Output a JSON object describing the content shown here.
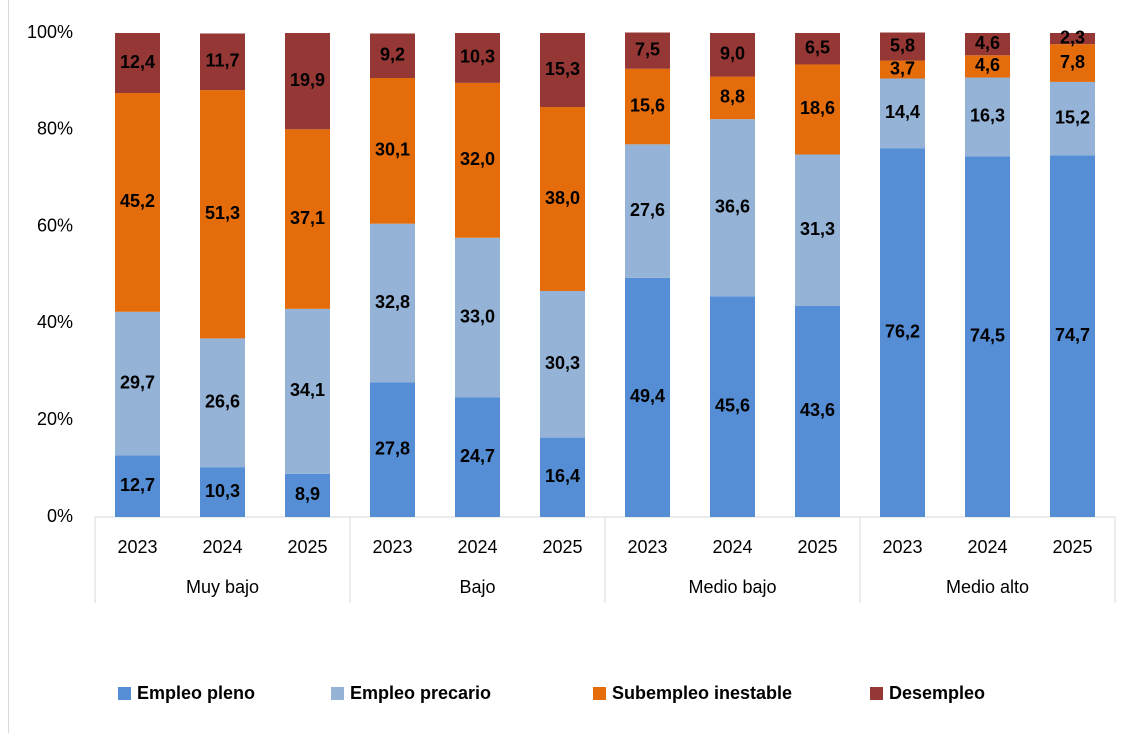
{
  "chart_data": {
    "type": "stacked_bar",
    "categories": [
      "2023",
      "2024",
      "2025",
      "2023",
      "2024",
      "2025",
      "2023",
      "2024",
      "2025",
      "2023",
      "2024",
      "2025"
    ],
    "groups": [
      "Muy bajo",
      "Bajo",
      "Medio bajo",
      "Medio alto"
    ],
    "series": [
      {
        "name": "Empleo pleno",
        "color": "#558ed5",
        "values": [
          12.7,
          10.3,
          8.9,
          27.8,
          24.7,
          16.4,
          49.4,
          45.6,
          43.6,
          76.2,
          74.5,
          74.7
        ],
        "value_labels": [
          "12,7",
          "10,3",
          "8,9",
          "27,8",
          "24,7",
          "16,4",
          "49,4",
          "45,6",
          "43,6",
          "76,2",
          "74,5",
          "74,7"
        ]
      },
      {
        "name": "Empleo precario",
        "color": "#95b3d7",
        "values": [
          29.7,
          26.6,
          34.1,
          32.8,
          33.0,
          30.3,
          27.6,
          36.6,
          31.3,
          14.4,
          16.3,
          15.2
        ],
        "value_labels": [
          "29,7",
          "26,6",
          "34,1",
          "32,8",
          "33,0",
          "30,3",
          "27,6",
          "36,6",
          "31,3",
          "14,4",
          "16,3",
          "15,2"
        ]
      },
      {
        "name": "Subempleo inestable",
        "color": "#e46c0a",
        "values": [
          45.2,
          51.3,
          37.1,
          30.1,
          32.0,
          38.0,
          15.6,
          8.8,
          18.6,
          3.7,
          4.6,
          7.8
        ],
        "value_labels": [
          "45,2",
          "51,3",
          "37,1",
          "30,1",
          "32,0",
          "38,0",
          "15,6",
          "8,8",
          "18,6",
          "3,7",
          "4,6",
          "7,8"
        ]
      },
      {
        "name": "Desempleo",
        "color": "#953735",
        "values": [
          12.4,
          11.7,
          19.9,
          9.2,
          10.3,
          15.3,
          7.5,
          9.0,
          6.5,
          5.8,
          4.6,
          2.3
        ],
        "value_labels": [
          "12,4",
          "11,7",
          "19,9",
          "9,2",
          "10,3",
          "15,3",
          "7,5",
          "9,0",
          "6,5",
          "5,8",
          "4,6",
          "2,3"
        ]
      }
    ],
    "ylim": [
      0,
      100
    ],
    "yticks": [
      {
        "value": 0,
        "label": "0%"
      },
      {
        "value": 20,
        "label": "20%"
      },
      {
        "value": 40,
        "label": "40%"
      },
      {
        "value": 60,
        "label": "60%"
      },
      {
        "value": 80,
        "label": "80%"
      },
      {
        "value": 100,
        "label": "100%"
      }
    ],
    "legend": "bottom"
  }
}
